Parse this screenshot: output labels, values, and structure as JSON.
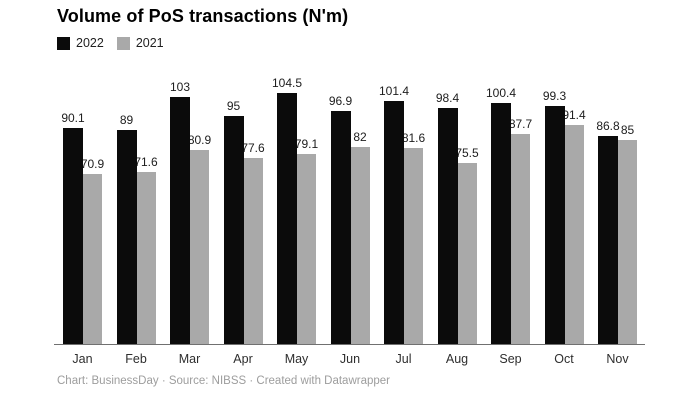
{
  "title": "Volume of PoS transactions (N'm)",
  "footer": "Chart: BusinessDay · Source: NIBSS · Created with Datawrapper",
  "colors": {
    "series_2022": "#0b0b0b",
    "series_2021": "#a9a9a9",
    "axis_line": "#707070",
    "value_label": "#1d1d1d",
    "footer_text": "#9d9d9d"
  },
  "chart_data": {
    "type": "bar",
    "title": "Volume of PoS transactions (N'm)",
    "categories": [
      "Jan",
      "Feb",
      "Mar",
      "Apr",
      "May",
      "Jun",
      "Jul",
      "Aug",
      "Sep",
      "Oct",
      "Nov"
    ],
    "series": [
      {
        "name": "2022",
        "color": "#0b0b0b",
        "values": [
          90.1,
          89,
          103,
          95,
          104.5,
          96.9,
          101.4,
          98.4,
          100.4,
          99.3,
          86.8
        ]
      },
      {
        "name": "2021",
        "color": "#a9a9a9",
        "values": [
          70.9,
          71.6,
          80.9,
          77.6,
          79.1,
          82,
          81.6,
          75.5,
          87.7,
          91.4,
          85
        ]
      }
    ],
    "xlabel": "",
    "ylabel": "",
    "ylim": [
      0,
      104.5
    ],
    "grid": false,
    "legend_position": "top-left",
    "value_labels": true
  }
}
